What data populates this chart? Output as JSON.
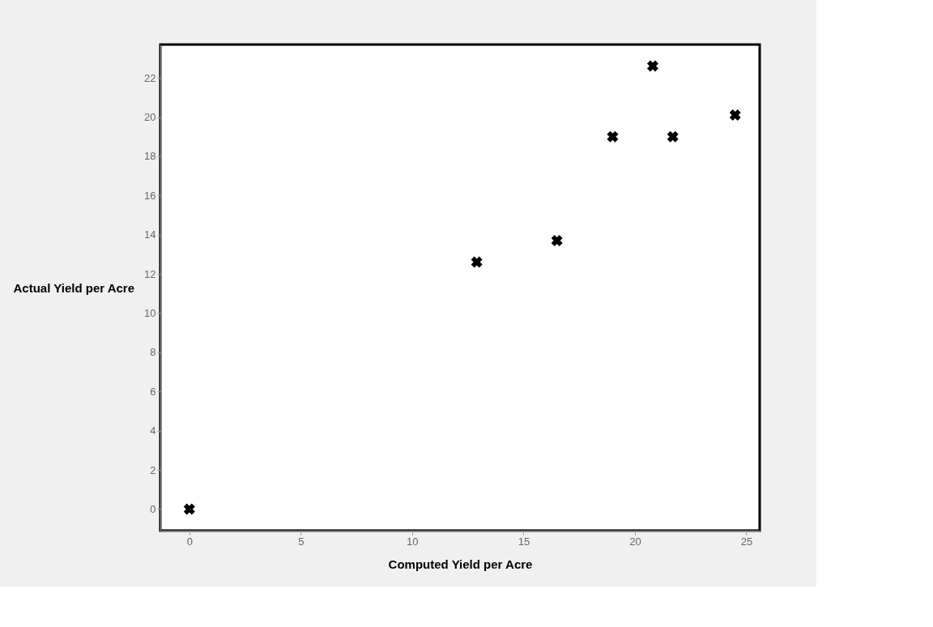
{
  "chart_data": {
    "type": "scatter",
    "xlabel": "Computed Yield per Acre",
    "ylabel": "Actual Yield per Acre",
    "x": [
      0,
      12.9,
      16.5,
      19.0,
      20.8,
      21.7,
      24.5
    ],
    "series": [
      {
        "color": "#000000",
        "values": [
          0,
          12.6,
          13.7,
          19.0,
          22.6,
          19.0,
          20.1
        ]
      }
    ],
    "xlim": [
      -1.3,
      25.6
    ],
    "ylim": [
      -1.1,
      23.7
    ],
    "xticks": [
      0,
      5,
      10,
      15,
      20,
      25
    ],
    "yticks": [
      0,
      2,
      4,
      6,
      8,
      10,
      12,
      14,
      16,
      18,
      20,
      22
    ],
    "marker": "cross",
    "grid": false
  }
}
